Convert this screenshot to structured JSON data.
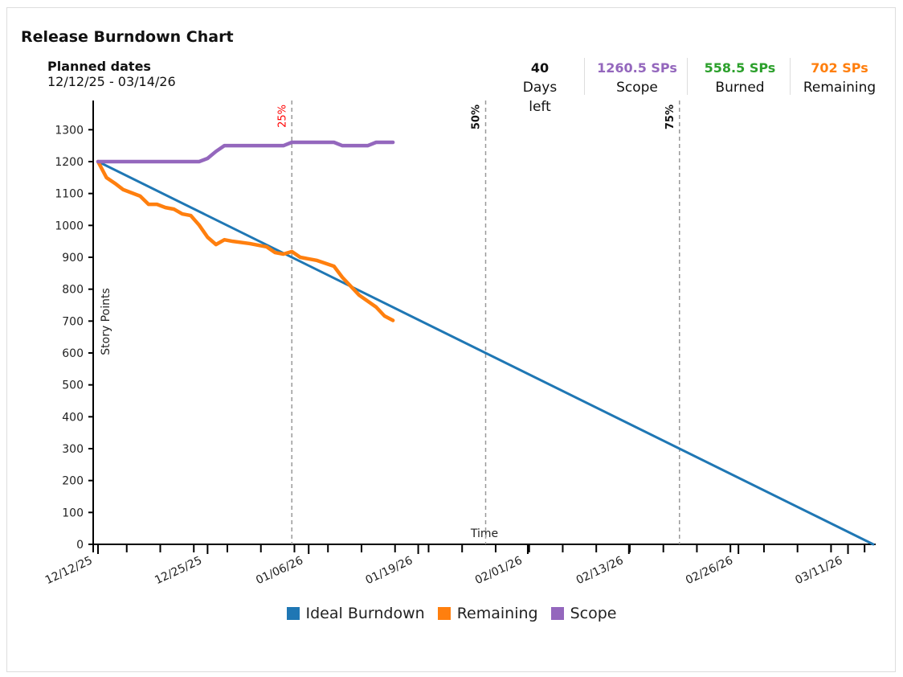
{
  "header": {
    "title": "Release Burndown Chart",
    "planned_label": "Planned dates",
    "planned_range": "12/12/25 - 03/14/26"
  },
  "stats": [
    {
      "value": "40",
      "label": "Days left",
      "color": "#111111"
    },
    {
      "value": "1260.5 SPs",
      "label": "Scope",
      "color": "#9467bd"
    },
    {
      "value": "558.5 SPs",
      "label": "Burned",
      "color": "#2ca02c"
    },
    {
      "value": "702 SPs",
      "label": "Remaining",
      "color": "#ff7f0e"
    }
  ],
  "chart_data": {
    "type": "line",
    "xlabel": "Time",
    "ylabel": "Story Points",
    "xlim": [
      "12/12/25",
      "03/14/26"
    ],
    "ylim": [
      0,
      1300
    ],
    "yticks": [
      0,
      100,
      200,
      300,
      400,
      500,
      600,
      700,
      800,
      900,
      1000,
      1100,
      1200,
      1300
    ],
    "xtick_labels": [
      "12/12/25",
      "12/25/25",
      "01/06/26",
      "01/19/26",
      "02/01/26",
      "02/13/26",
      "02/26/26",
      "03/11/26"
    ],
    "markers": [
      {
        "label": "25%",
        "date": "01/04/26",
        "color": "#ff0000"
      },
      {
        "label": "50%",
        "date": "01/27/26",
        "color": "#111111"
      },
      {
        "label": "75%",
        "date": "02/19/26",
        "color": "#111111"
      }
    ],
    "legend_position": "bottom",
    "series": [
      {
        "name": "Ideal Burndown",
        "color": "#1f77b4",
        "points": [
          [
            "12/12/25",
            1200
          ],
          [
            "03/14/26",
            0
          ]
        ]
      },
      {
        "name": "Remaining",
        "color": "#ff7f0e",
        "points": [
          [
            "12/12/25",
            1200
          ],
          [
            "12/13/25",
            1150
          ],
          [
            "12/14/25",
            1132
          ],
          [
            "12/15/25",
            1112
          ],
          [
            "12/16/25",
            1102
          ],
          [
            "12/17/25",
            1092
          ],
          [
            "12/18/25",
            1066
          ],
          [
            "12/19/25",
            1066
          ],
          [
            "12/20/25",
            1056
          ],
          [
            "12/21/25",
            1051
          ],
          [
            "12/22/25",
            1036
          ],
          [
            "12/23/25",
            1031
          ],
          [
            "12/24/25",
            1001
          ],
          [
            "12/25/25",
            963
          ],
          [
            "12/26/25",
            940
          ],
          [
            "12/27/25",
            955
          ],
          [
            "12/28/25",
            950
          ],
          [
            "12/30/25",
            943
          ],
          [
            "01/01/26",
            933
          ],
          [
            "01/02/26",
            915
          ],
          [
            "01/03/26",
            910
          ],
          [
            "01/04/26",
            918
          ],
          [
            "01/05/26",
            900
          ],
          [
            "01/07/26",
            890
          ],
          [
            "01/09/26",
            872
          ],
          [
            "01/10/26",
            837
          ],
          [
            "01/12/26",
            781
          ],
          [
            "01/14/26",
            744
          ],
          [
            "01/15/26",
            716
          ],
          [
            "01/16/26",
            702
          ]
        ]
      },
      {
        "name": "Scope",
        "color": "#9467bd",
        "points": [
          [
            "12/12/25",
            1200
          ],
          [
            "12/24/25",
            1200
          ],
          [
            "12/25/25",
            1210
          ],
          [
            "12/26/25",
            1232
          ],
          [
            "12/27/25",
            1250
          ],
          [
            "01/03/26",
            1250
          ],
          [
            "01/04/26",
            1260.5
          ],
          [
            "01/09/26",
            1260.5
          ],
          [
            "01/10/26",
            1250
          ],
          [
            "01/13/26",
            1250
          ],
          [
            "01/14/26",
            1260.5
          ],
          [
            "01/16/26",
            1260.5
          ]
        ]
      }
    ]
  }
}
